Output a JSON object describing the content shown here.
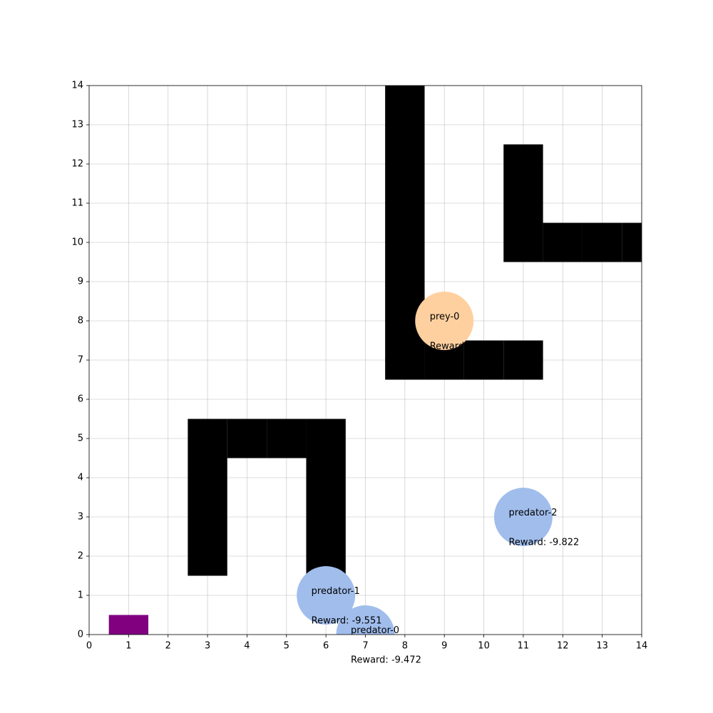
{
  "chart_data": {
    "type": "gridworld",
    "xlim": [
      0,
      14
    ],
    "ylim": [
      0,
      14
    ],
    "xticks": [
      0,
      1,
      2,
      3,
      4,
      5,
      6,
      7,
      8,
      9,
      10,
      11,
      12,
      13,
      14
    ],
    "yticks": [
      0,
      1,
      2,
      3,
      4,
      5,
      6,
      7,
      8,
      9,
      10,
      11,
      12,
      13,
      14
    ],
    "grid": true,
    "wall_color": "#000000",
    "walls": [
      [
        8,
        7
      ],
      [
        8,
        8
      ],
      [
        8,
        9
      ],
      [
        8,
        10
      ],
      [
        8,
        11
      ],
      [
        8,
        12
      ],
      [
        8,
        13
      ],
      [
        8,
        14
      ],
      [
        9,
        7
      ],
      [
        10,
        7
      ],
      [
        11,
        7
      ],
      [
        11,
        10
      ],
      [
        11,
        11
      ],
      [
        11,
        12
      ],
      [
        12,
        10
      ],
      [
        13,
        10
      ],
      [
        14,
        10
      ],
      [
        3,
        2
      ],
      [
        3,
        3
      ],
      [
        3,
        4
      ],
      [
        3,
        5
      ],
      [
        4,
        5
      ],
      [
        5,
        5
      ],
      [
        6,
        5
      ],
      [
        6,
        4
      ],
      [
        6,
        3
      ],
      [
        6,
        2
      ]
    ],
    "goal": {
      "x": 1,
      "y": 0,
      "color": "#800080"
    },
    "agents": [
      {
        "name": "prey-0",
        "x": 9,
        "y": 8,
        "color": "#ffd09f",
        "reward_label": "Reward"
      },
      {
        "name": "predator-1",
        "x": 6,
        "y": 1,
        "color": "#a0bdec",
        "reward_label": "Reward: -9.551"
      },
      {
        "name": "predator-0",
        "x": 7,
        "y": 0,
        "color": "#a0bdec",
        "reward_label": "Reward: -9.472"
      },
      {
        "name": "predator-2",
        "x": 11,
        "y": 3,
        "color": "#a0bdec",
        "reward_label": "Reward: -9.822"
      }
    ]
  }
}
